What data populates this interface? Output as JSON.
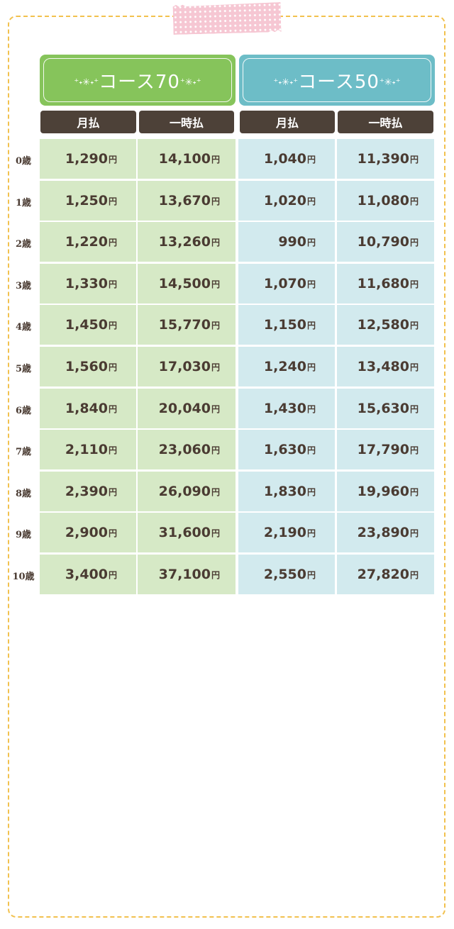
{
  "plans": [
    {
      "label": "コース70",
      "sparkle_left": "⁺˖✳˖⁺",
      "sparkle_right": "⁺✳˖⁺"
    },
    {
      "label": "コース50",
      "sparkle_left": "⁺˖✳˖⁺",
      "sparkle_right": "⁺✳˖⁺"
    }
  ],
  "headers": [
    "月払",
    "一時払",
    "月払",
    "一時払"
  ],
  "yen": "円",
  "colors": {
    "course70": "#86c45b",
    "course50": "#6dbdc7",
    "header_bg": "#4d4138",
    "cell_green": "#d6e9c6",
    "cell_blue": "#d2eaee",
    "frame_border": "#f2c14e",
    "tape": "#f6c7d3"
  },
  "rows": [
    {
      "age": "0歳",
      "values": [
        "1,290",
        "14,100",
        "1,040",
        "11,390"
      ]
    },
    {
      "age": "1歳",
      "values": [
        "1,250",
        "13,670",
        "1,020",
        "11,080"
      ]
    },
    {
      "age": "2歳",
      "values": [
        "1,220",
        "13,260",
        "990",
        "10,790"
      ]
    },
    {
      "age": "3歳",
      "values": [
        "1,330",
        "14,500",
        "1,070",
        "11,680"
      ]
    },
    {
      "age": "4歳",
      "values": [
        "1,450",
        "15,770",
        "1,150",
        "12,580"
      ]
    },
    {
      "age": "5歳",
      "values": [
        "1,560",
        "17,030",
        "1,240",
        "13,480"
      ]
    },
    {
      "age": "6歳",
      "values": [
        "1,840",
        "20,040",
        "1,430",
        "15,630"
      ]
    },
    {
      "age": "7歳",
      "values": [
        "2,110",
        "23,060",
        "1,630",
        "17,790"
      ]
    },
    {
      "age": "8歳",
      "values": [
        "2,390",
        "26,090",
        "1,830",
        "19,960"
      ]
    },
    {
      "age": "9歳",
      "values": [
        "2,900",
        "31,600",
        "2,190",
        "23,890"
      ]
    },
    {
      "age": "10歳",
      "values": [
        "3,400",
        "37,100",
        "2,550",
        "27,820"
      ]
    }
  ]
}
